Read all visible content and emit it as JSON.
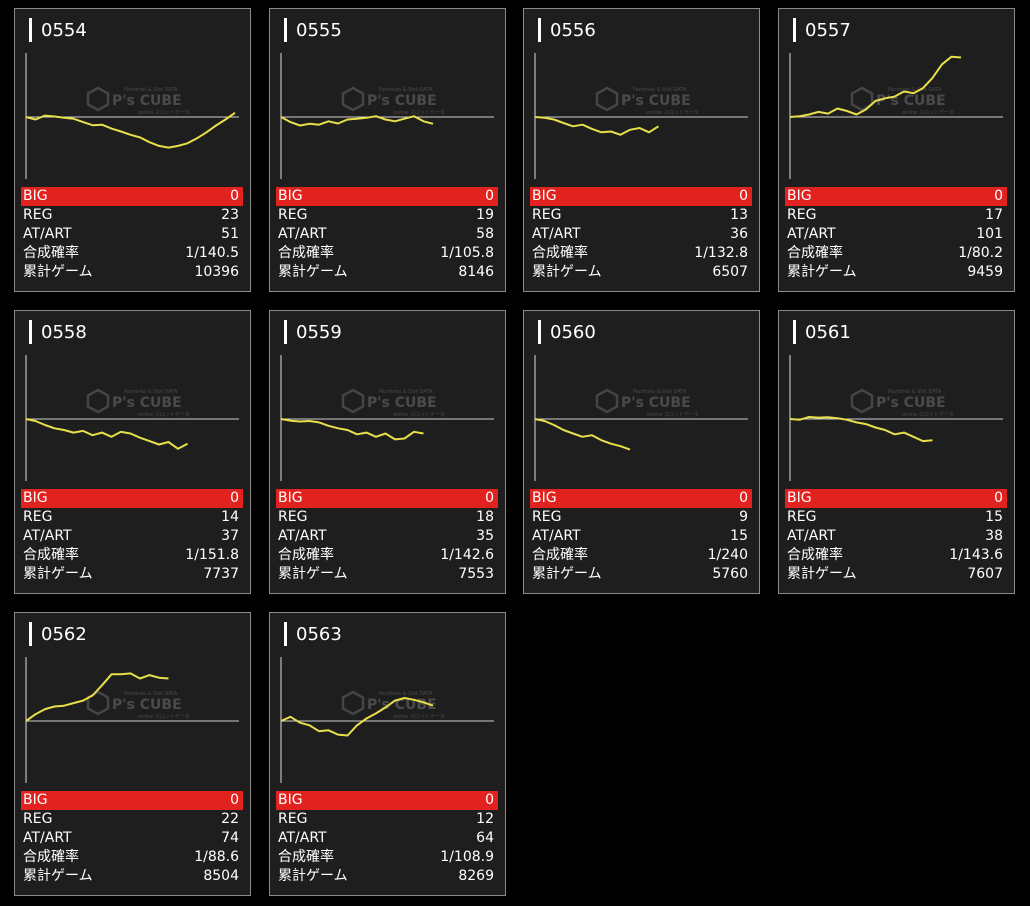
{
  "labels": {
    "big": "BIG",
    "reg": "REG",
    "at": "AT/ART",
    "prob": "合成確率",
    "games": "累計ゲーム"
  },
  "watermark": {
    "brand": "P's CUBE",
    "top": "Pachinko & Slot DATA",
    "bottom": "online スロットデータ"
  },
  "colors": {
    "line": "#e8e04a",
    "big_row": "#e2221f",
    "panel": "#1e1e1e",
    "border": "#8a8a8a"
  },
  "machines": [
    {
      "id": "0554",
      "big": "0",
      "reg": "23",
      "at": "51",
      "prob": "1/140.5",
      "games": "10396",
      "graph": [
        0,
        -0.15,
        0.08,
        0.03,
        -0.05,
        -0.1,
        -0.3,
        -0.48,
        -0.45,
        -0.68,
        -0.85,
        -1.05,
        -1.2,
        -1.48,
        -1.7,
        -1.8,
        -1.7,
        -1.55,
        -1.25,
        -0.9,
        -0.5,
        -0.15,
        0.25
      ]
    },
    {
      "id": "0555",
      "big": "0",
      "reg": "19",
      "at": "58",
      "prob": "1/105.8",
      "games": "8146",
      "graph": [
        0,
        -0.3,
        -0.5,
        -0.4,
        -0.45,
        -0.25,
        -0.38,
        -0.15,
        -0.1,
        -0.05,
        0.05,
        -0.15,
        -0.25,
        -0.1,
        0.05,
        -0.25,
        -0.4
      ]
    },
    {
      "id": "0556",
      "big": "0",
      "reg": "13",
      "at": "36",
      "prob": "1/132.8",
      "games": "6507",
      "graph": [
        0,
        -0.05,
        -0.15,
        -0.35,
        -0.55,
        -0.45,
        -0.7,
        -0.9,
        -0.85,
        -1.05,
        -0.75,
        -0.65,
        -0.9,
        -0.55
      ]
    },
    {
      "id": "0557",
      "big": "0",
      "reg": "17",
      "at": "101",
      "prob": "1/80.2",
      "games": "9459",
      "graph": [
        0,
        0.05,
        0.15,
        0.3,
        0.2,
        0.5,
        0.35,
        0.15,
        0.45,
        0.95,
        1.1,
        1.2,
        1.5,
        1.4,
        1.7,
        2.3,
        3.1,
        3.55,
        3.5
      ]
    },
    {
      "id": "0558",
      "big": "0",
      "reg": "14",
      "at": "37",
      "prob": "1/151.8",
      "games": "7737",
      "graph": [
        0,
        -0.12,
        -0.35,
        -0.55,
        -0.65,
        -0.8,
        -0.7,
        -0.95,
        -0.8,
        -1.05,
        -0.75,
        -0.85,
        -1.1,
        -1.3,
        -1.5,
        -1.35,
        -1.75,
        -1.45
      ]
    },
    {
      "id": "0559",
      "big": "0",
      "reg": "18",
      "at": "35",
      "prob": "1/142.6",
      "games": "7553",
      "graph": [
        0,
        -0.1,
        -0.15,
        -0.12,
        -0.2,
        -0.4,
        -0.55,
        -0.65,
        -0.9,
        -0.8,
        -1.05,
        -0.85,
        -1.2,
        -1.15,
        -0.75,
        -0.85
      ]
    },
    {
      "id": "0560",
      "big": "0",
      "reg": "9",
      "at": "15",
      "prob": "1/240",
      "games": "5760",
      "graph": [
        0,
        -0.12,
        -0.35,
        -0.65,
        -0.85,
        -1.05,
        -0.95,
        -1.25,
        -1.45,
        -1.6,
        -1.8
      ]
    },
    {
      "id": "0561",
      "big": "0",
      "reg": "15",
      "at": "38",
      "prob": "1/143.6",
      "games": "7607",
      "graph": [
        0,
        -0.05,
        0.12,
        0.08,
        0.1,
        0.05,
        -0.05,
        -0.2,
        -0.3,
        -0.5,
        -0.65,
        -0.9,
        -0.8,
        -1.05,
        -1.3,
        -1.25
      ]
    },
    {
      "id": "0562",
      "big": "0",
      "reg": "22",
      "at": "74",
      "prob": "1/88.6",
      "games": "8504",
      "graph": [
        0,
        0.4,
        0.7,
        0.85,
        0.9,
        1.05,
        1.2,
        1.5,
        2.1,
        2.75,
        2.75,
        2.8,
        2.5,
        2.7,
        2.55,
        2.5
      ]
    },
    {
      "id": "0563",
      "big": "0",
      "reg": "12",
      "at": "64",
      "prob": "1/108.9",
      "games": "8269",
      "graph": [
        0,
        0.25,
        -0.1,
        -0.25,
        -0.6,
        -0.55,
        -0.8,
        -0.85,
        -0.25,
        0.15,
        0.45,
        0.8,
        1.2,
        1.35,
        1.25,
        1.1,
        0.9
      ]
    }
  ]
}
